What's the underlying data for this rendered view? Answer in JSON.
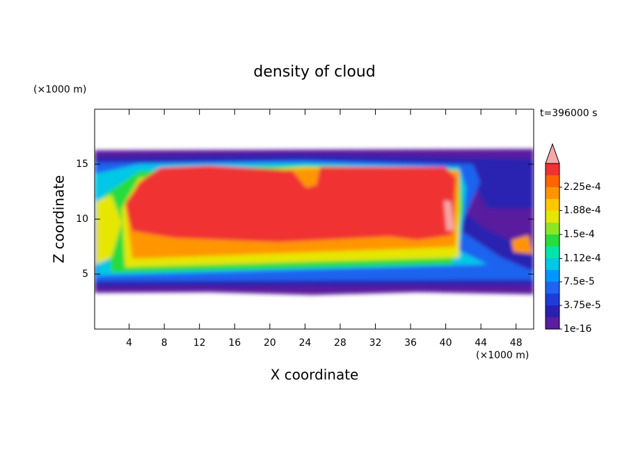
{
  "chart_data": {
    "type": "contour",
    "title": "density of cloud",
    "x_label": "X coordinate",
    "y_label": "Z coordinate",
    "x_unit": "(×1000 m)",
    "y_unit": "(×1000 m)",
    "time_label": "t=396000 s",
    "xlim": [
      0,
      50
    ],
    "ylim": [
      0,
      20
    ],
    "xticks": [
      4,
      8,
      12,
      16,
      20,
      24,
      28,
      32,
      36,
      40,
      44,
      48
    ],
    "yticks": [
      5,
      10,
      15
    ],
    "colorbar": {
      "clim": [
        1e-16,
        0.0002625
      ],
      "ticks": [
        1e-16,
        {
          "value": 3.75e-05,
          "label": "3.75e-5"
        },
        {
          "value": 7.5e-05,
          "label": "7.5e-5"
        },
        {
          "value": 0.000112,
          "label": "1.12e-4"
        },
        {
          "value": 0.00015,
          "label": "1.5e-4"
        },
        {
          "value": 0.000188,
          "label": "1.88e-4"
        },
        {
          "value": 0.000225,
          "label": "2.25e-4"
        }
      ],
      "colors": [
        "#5a1e9e",
        "#2a20b0",
        "#1e3cd8",
        "#1e64f0",
        "#0096ff",
        "#00c8e6",
        "#00e6aa",
        "#28dc3c",
        "#8ce628",
        "#e6e600",
        "#ffc800",
        "#ff9600",
        "#ff6400",
        "#f03232"
      ],
      "extend_color": "#f4a8a8"
    }
  }
}
